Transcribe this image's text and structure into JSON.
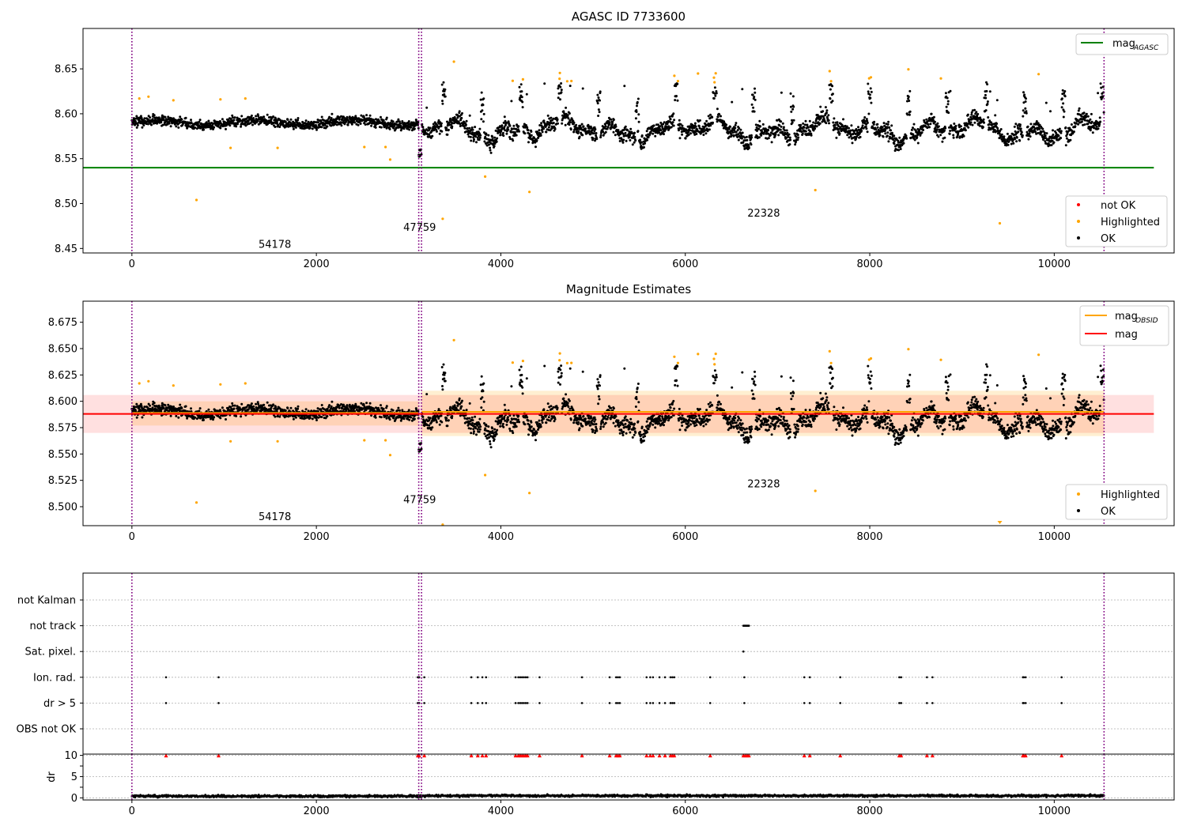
{
  "chart_data": [
    {
      "type": "scatter",
      "title": "AGASC ID 7733600",
      "xlim": [
        -530,
        11300
      ],
      "ylim": [
        8.445,
        8.695
      ],
      "x_ticks": [
        0,
        2000,
        4000,
        6000,
        8000,
        10000,
        12000
      ],
      "y_ticks": [
        8.45,
        8.5,
        8.55,
        8.6,
        8.65
      ],
      "obs_boundaries": [
        0,
        3110,
        3140,
        10540
      ],
      "obs_labels": [
        {
          "text": "54178",
          "x": 1550,
          "y": 8.455
        },
        {
          "text": "47759",
          "x": 3120,
          "y": 8.474
        },
        {
          "text": "22328",
          "x": 6850,
          "y": 8.49
        }
      ],
      "reference_lines": [
        {
          "name": "mag_AGASC",
          "value": 8.54,
          "x_range": [
            -530,
            11080
          ],
          "color": "#008000"
        }
      ],
      "legend_lines": {
        "label": "mag",
        "subscript": "AGASC"
      },
      "legend_points": [
        "not OK",
        "Highlighted",
        "OK"
      ],
      "series": [
        {
          "name": "OK",
          "color": "#000000",
          "generator": "ok"
        },
        {
          "name": "Highlighted",
          "color": "#ffa500",
          "generator": "highlighted"
        }
      ]
    },
    {
      "type": "scatter",
      "title": "Magnitude Estimates",
      "xlim": [
        -530,
        11300
      ],
      "ylim": [
        8.482,
        8.695
      ],
      "x_ticks": [
        0,
        2000,
        4000,
        6000,
        8000,
        10000,
        12000
      ],
      "y_ticks": [
        8.5,
        8.525,
        8.55,
        8.575,
        8.6,
        8.625,
        8.65,
        8.675
      ],
      "obs_boundaries": [
        0,
        3110,
        3140,
        10540
      ],
      "obs_labels": [
        {
          "text": "54178",
          "x": 1550,
          "y": 8.491
        },
        {
          "text": "47759",
          "x": 3120,
          "y": 8.507
        },
        {
          "text": "22328",
          "x": 6850,
          "y": 8.522
        }
      ],
      "bands": [
        {
          "x_range": [
            0,
            3110
          ],
          "y_range": [
            8.577,
            8.6
          ],
          "color": "#ffa500",
          "opacity": 0.18
        },
        {
          "x_range": [
            3140,
            10540
          ],
          "y_range": [
            8.567,
            8.61
          ],
          "color": "#ffa500",
          "opacity": 0.18
        },
        {
          "x_range": [
            -530,
            11080
          ],
          "y_range": [
            8.57,
            8.606
          ],
          "color": "#ff0000",
          "opacity": 0.12
        }
      ],
      "reference_lines": [
        {
          "name": "mag_OBSID",
          "value": 8.589,
          "x_range": [
            0,
            3110
          ],
          "color": "#ffa500"
        },
        {
          "name": "mag_OBSID",
          "value": 8.59,
          "x_range": [
            3140,
            10540
          ],
          "color": "#ffa500"
        },
        {
          "name": "mag",
          "value": 8.588,
          "x_range": [
            -530,
            11080
          ],
          "color": "#ff0000"
        }
      ],
      "legend_lines": [
        {
          "label": "mag",
          "subscript": "OBSID",
          "color": "#ffa500"
        },
        {
          "label": "mag",
          "subscript": "",
          "color": "#ff0000"
        }
      ],
      "legend_points": [
        "Highlighted",
        "OK"
      ],
      "series": [
        {
          "name": "OK",
          "color": "#000000",
          "generator": "ok"
        },
        {
          "name": "Highlighted",
          "color": "#ffa500",
          "generator": "highlighted"
        }
      ]
    },
    {
      "type": "scatter",
      "title": "",
      "xlim": [
        -530,
        11300
      ],
      "x_ticks": [
        0,
        2000,
        4000,
        6000,
        8000,
        10000,
        12000
      ],
      "flag_rows": [
        "not Kalman",
        "not track",
        "Sat. pixel.",
        "Ion. rad.",
        "dr > 5",
        "OBS not OK"
      ],
      "flag_events": {
        "not track": [
          6630,
          6640,
          6650,
          6660,
          6670,
          6680,
          6690
        ],
        "Sat. pixel.": [
          6630
        ],
        "Ion. rad.": [
          370,
          940,
          3100,
          3115,
          3170,
          3680,
          3750,
          3800,
          3840,
          4160,
          4190,
          4210,
          4230,
          4250,
          4270,
          4290,
          4420,
          4880,
          5180,
          5250,
          5270,
          5290,
          5580,
          5620,
          5650,
          5720,
          5780,
          5840,
          5860,
          5880,
          6270,
          6640,
          7290,
          7350,
          7680,
          8320,
          8340,
          8620,
          8680,
          9660,
          9670,
          9690,
          10080
        ],
        "dr > 5": [
          370,
          940,
          3100,
          3115,
          3170,
          3680,
          3750,
          3800,
          3840,
          4160,
          4190,
          4210,
          4230,
          4250,
          4270,
          4290,
          4420,
          4880,
          5180,
          5250,
          5270,
          5290,
          5580,
          5620,
          5650,
          5720,
          5780,
          5840,
          5860,
          5880,
          6270,
          6640,
          7290,
          7350,
          7680,
          8320,
          8340,
          8620,
          8680,
          9660,
          9670,
          9690,
          10080
        ]
      },
      "obs_boundaries": [
        0,
        3110,
        3140,
        10540
      ]
    },
    {
      "type": "scatter",
      "title": "",
      "ylabel": "dr",
      "xlim": [
        -530,
        11300
      ],
      "ylim": [
        -0.5,
        10.3
      ],
      "x_ticks": [
        0,
        2000,
        4000,
        6000,
        8000,
        10000,
        12000
      ],
      "y_ticks": [
        0,
        5,
        10
      ],
      "clipped_marker_value": 10,
      "clipped_x": [
        370,
        940,
        3100,
        3115,
        3170,
        3680,
        3750,
        3800,
        3840,
        4160,
        4190,
        4210,
        4230,
        4250,
        4270,
        4290,
        4420,
        4880,
        5180,
        5250,
        5270,
        5290,
        5580,
        5620,
        5650,
        5720,
        5780,
        5840,
        5860,
        5880,
        6270,
        6630,
        6650,
        6670,
        6690,
        7290,
        7350,
        7680,
        8320,
        8340,
        8620,
        8680,
        9660,
        9670,
        9690,
        10080
      ],
      "obs_boundaries": [
        0,
        3110,
        3140,
        10540
      ],
      "series": [
        {
          "name": "dr",
          "color": "#000000",
          "typical_value": 0.4
        }
      ]
    }
  ],
  "colors": {
    "ok": "#000000",
    "highlighted": "#ffa500",
    "not_ok": "#ff0000",
    "boundary": "#800080",
    "mag_agasc": "#008000",
    "mag": "#ff0000",
    "mag_obsid": "#ffa500",
    "grid": "#b0b0b0"
  }
}
